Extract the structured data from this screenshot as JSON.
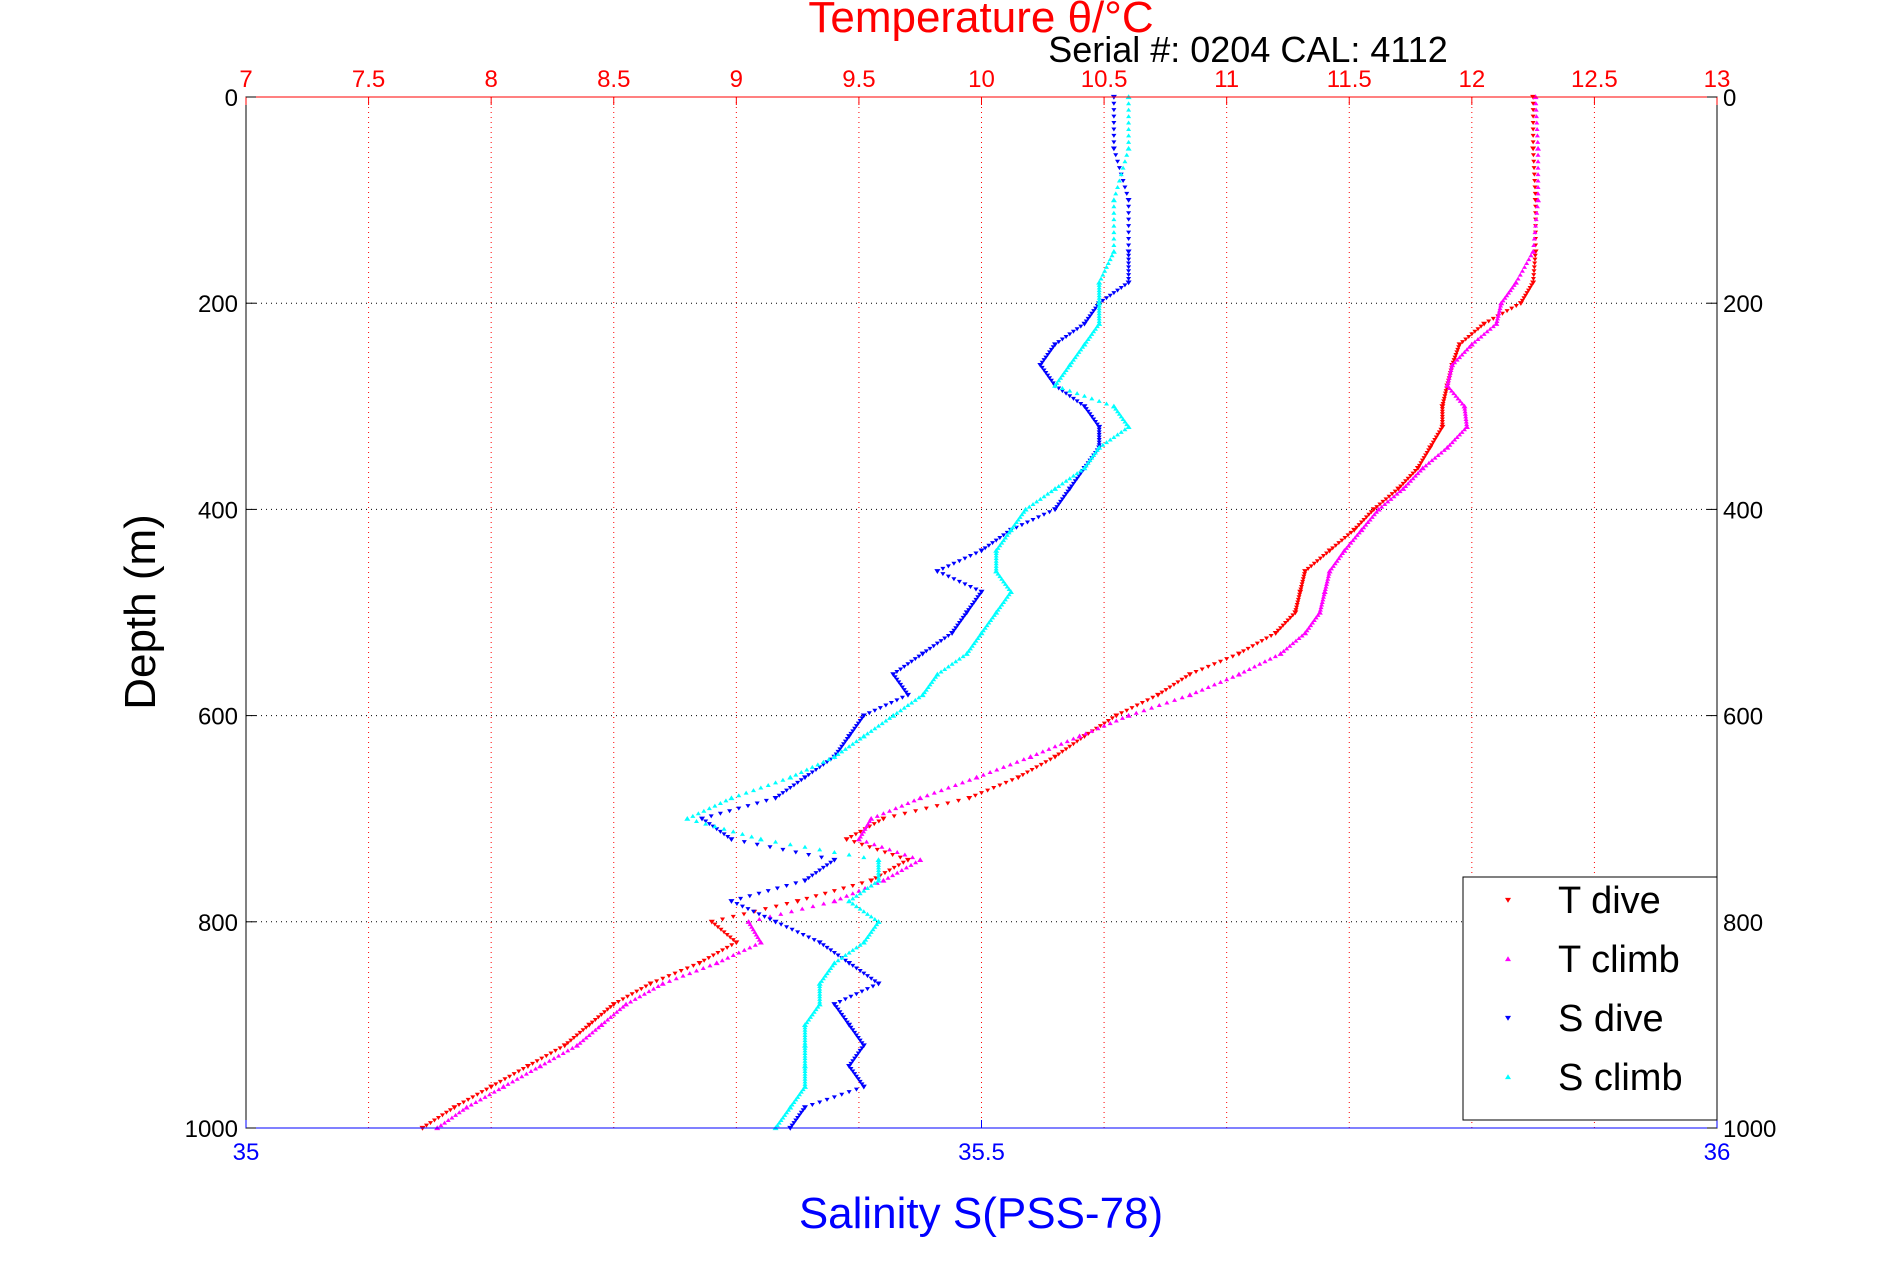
{
  "chart_data": {
    "type": "scatter",
    "top_axis_title": "Temperature θ/°C",
    "bottom_axis_title": "Salinity S(PSS-78)",
    "ylabel": "Depth (m)",
    "annotation": "Serial #: 0204  CAL: 4112",
    "temperature_range": [
      7,
      13
    ],
    "temperature_ticks": [
      "7",
      "7.5",
      "8",
      "8.5",
      "9",
      "9.5",
      "10",
      "10.5",
      "11",
      "11.5",
      "12",
      "12.5",
      "13"
    ],
    "salinity_range": [
      35,
      36
    ],
    "salinity_ticks": [
      "35",
      "35.5",
      "36"
    ],
    "depth_range": [
      0,
      1000
    ],
    "depth_ticks": [
      "0",
      "200",
      "400",
      "600",
      "800",
      "1000"
    ],
    "y_reversed": true,
    "grid": true,
    "legend_position": "bottom-right",
    "colors": {
      "t_dive": "#ff0000",
      "t_climb": "#ff00ff",
      "s_dive": "#0000ff",
      "s_climb": "#00ffff",
      "top_axis": "#ff0000",
      "bottom_axis": "#0000ff"
    },
    "series": [
      {
        "name": "T dive",
        "axis": "temperature",
        "marker": "triangle-down",
        "depth": [
          0,
          50,
          100,
          150,
          180,
          200,
          220,
          240,
          260,
          280,
          300,
          320,
          340,
          360,
          380,
          400,
          420,
          440,
          460,
          480,
          500,
          520,
          540,
          560,
          580,
          600,
          620,
          640,
          660,
          680,
          700,
          720,
          740,
          760,
          780,
          800,
          820,
          840,
          860,
          880,
          900,
          920,
          940,
          960,
          980,
          1000
        ],
        "values": [
          12.25,
          12.25,
          12.26,
          12.26,
          12.25,
          12.2,
          12.05,
          11.95,
          11.92,
          11.9,
          11.88,
          11.88,
          11.83,
          11.78,
          11.7,
          11.6,
          11.52,
          11.42,
          11.32,
          11.3,
          11.28,
          11.2,
          11.05,
          10.85,
          10.72,
          10.55,
          10.42,
          10.3,
          10.15,
          9.95,
          9.6,
          9.45,
          9.7,
          9.55,
          9.25,
          8.9,
          9.0,
          8.85,
          8.65,
          8.5,
          8.4,
          8.3,
          8.15,
          8.0,
          7.85,
          7.72
        ]
      },
      {
        "name": "T climb",
        "axis": "temperature",
        "marker": "triangle-up",
        "depth": [
          0,
          50,
          100,
          150,
          180,
          200,
          220,
          240,
          260,
          280,
          300,
          320,
          340,
          360,
          380,
          400,
          420,
          440,
          460,
          480,
          500,
          520,
          540,
          560,
          580,
          600,
          620,
          640,
          660,
          680,
          700,
          720,
          740,
          760,
          780,
          800,
          820,
          840,
          860,
          880,
          900,
          920,
          940,
          960,
          980,
          1000
        ],
        "values": [
          12.26,
          12.27,
          12.27,
          12.25,
          12.18,
          12.12,
          12.1,
          12.0,
          11.92,
          11.9,
          11.97,
          11.98,
          11.9,
          11.8,
          11.72,
          11.62,
          11.55,
          11.48,
          11.42,
          11.4,
          11.38,
          11.32,
          11.22,
          11.05,
          10.85,
          10.6,
          10.4,
          10.2,
          9.98,
          9.75,
          9.55,
          9.5,
          9.75,
          9.6,
          9.4,
          9.05,
          9.1,
          8.92,
          8.7,
          8.55,
          8.45,
          8.35,
          8.2,
          8.05,
          7.9,
          7.78
        ]
      },
      {
        "name": "S dive",
        "axis": "salinity",
        "marker": "triangle-down",
        "depth": [
          0,
          50,
          100,
          150,
          180,
          200,
          220,
          240,
          260,
          280,
          300,
          320,
          340,
          360,
          380,
          400,
          420,
          440,
          460,
          480,
          500,
          520,
          540,
          560,
          580,
          600,
          620,
          640,
          660,
          680,
          700,
          720,
          740,
          760,
          780,
          800,
          820,
          840,
          860,
          880,
          900,
          920,
          940,
          960,
          980,
          1000
        ],
        "values": [
          35.59,
          35.59,
          35.6,
          35.6,
          35.6,
          35.58,
          35.57,
          35.55,
          35.54,
          35.55,
          35.57,
          35.58,
          35.58,
          35.57,
          35.56,
          35.55,
          35.52,
          35.5,
          35.47,
          35.5,
          35.49,
          35.48,
          35.46,
          35.44,
          35.45,
          35.42,
          35.41,
          35.4,
          35.38,
          35.36,
          35.31,
          35.33,
          35.4,
          35.38,
          35.33,
          35.36,
          35.39,
          35.41,
          35.43,
          35.4,
          35.41,
          35.42,
          35.41,
          35.42,
          35.38,
          35.37
        ]
      },
      {
        "name": "S climb",
        "axis": "salinity",
        "marker": "triangle-up",
        "depth": [
          0,
          50,
          100,
          150,
          180,
          200,
          220,
          240,
          260,
          280,
          300,
          320,
          340,
          360,
          380,
          400,
          420,
          440,
          460,
          480,
          500,
          520,
          540,
          560,
          580,
          600,
          620,
          640,
          660,
          680,
          700,
          720,
          740,
          760,
          780,
          800,
          820,
          840,
          860,
          880,
          900,
          920,
          940,
          960,
          980,
          1000
        ],
        "values": [
          35.6,
          35.6,
          35.59,
          35.59,
          35.58,
          35.58,
          35.58,
          35.57,
          35.56,
          35.55,
          35.59,
          35.6,
          35.58,
          35.57,
          35.55,
          35.53,
          35.52,
          35.51,
          35.51,
          35.52,
          35.51,
          35.5,
          35.49,
          35.47,
          35.46,
          35.44,
          35.42,
          35.4,
          35.37,
          35.33,
          35.3,
          35.35,
          35.43,
          35.43,
          35.41,
          35.43,
          35.42,
          35.4,
          35.39,
          35.39,
          35.38,
          35.38,
          35.38,
          35.38,
          35.37,
          35.36
        ]
      }
    ]
  }
}
